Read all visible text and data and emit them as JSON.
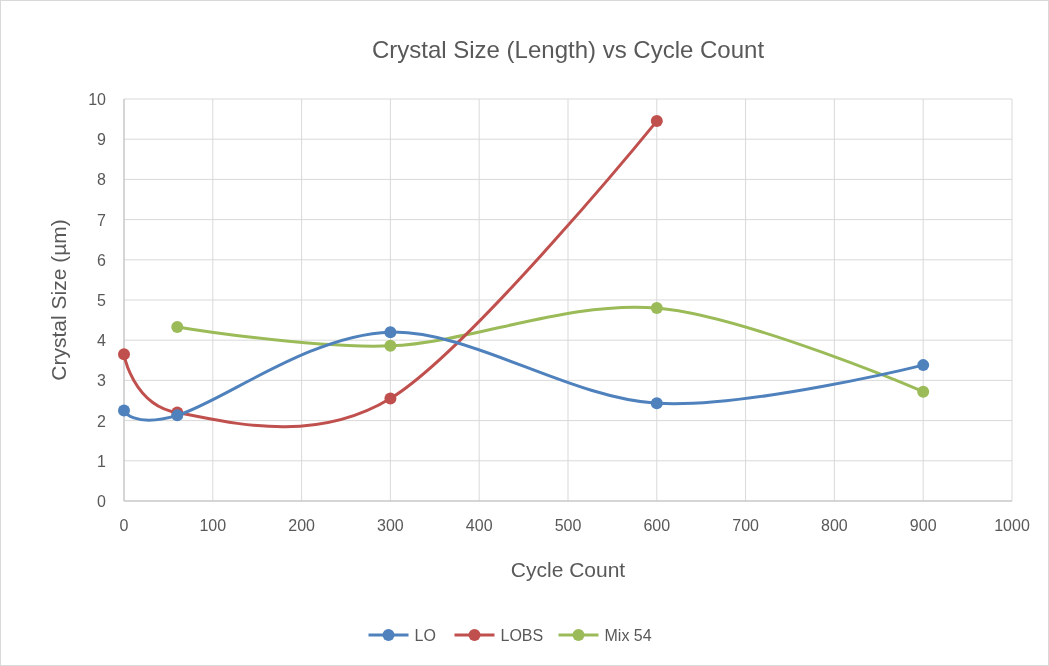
{
  "chart_data": {
    "type": "line",
    "title": "Crystal Size (Length) vs Cycle Count",
    "xlabel": "Cycle Count",
    "ylabel": "Crystal Size (µm)",
    "xlim": [
      0,
      1000
    ],
    "xticks": [
      0,
      100,
      200,
      300,
      400,
      500,
      600,
      700,
      800,
      900,
      1000
    ],
    "ylim": [
      0,
      10
    ],
    "yticks": [
      0,
      1,
      2,
      3,
      4,
      5,
      6,
      7,
      8,
      9,
      10
    ],
    "grid": true,
    "legend": "bottom",
    "marker": "circle",
    "line_style": "solid",
    "series": [
      {
        "name": "LO",
        "color": "#4f81bd",
        "x": [
          0,
          60,
          300,
          600,
          900
        ],
        "values": [
          2.25,
          2.13,
          4.2,
          2.43,
          3.38
        ]
      },
      {
        "name": "LOBS",
        "color": "#c0504d",
        "x": [
          0,
          60,
          300,
          600
        ],
        "values": [
          3.65,
          2.2,
          2.55,
          9.45
        ]
      },
      {
        "name": "Mix 54",
        "color": "#9bbb59",
        "x": [
          60,
          300,
          600,
          900
        ],
        "values": [
          4.33,
          3.86,
          4.8,
          2.72
        ]
      }
    ]
  }
}
